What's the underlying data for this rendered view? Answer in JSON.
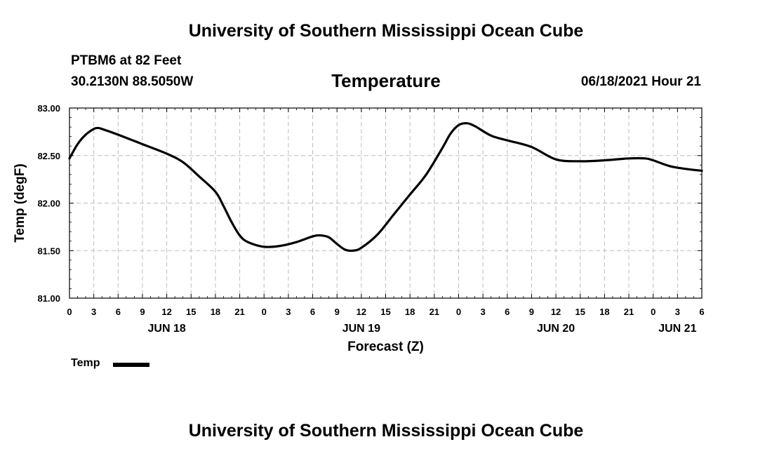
{
  "header": {
    "top_title": "University of Southern Mississippi Ocean Cube",
    "bottom_title": "University of Southern Mississippi Ocean Cube",
    "station_name": "PTBM6 at 82 Feet",
    "station_coords": "30.2130N  88.5050W",
    "valid_time": "06/18/2021 Hour 21"
  },
  "chart_data": {
    "type": "line",
    "title": "Temperature",
    "xlabel": "Forecast (Z)",
    "ylabel": "Temp (degF)",
    "ylim": [
      81.0,
      83.0
    ],
    "xlim_hours": [
      0,
      78
    ],
    "y_ticks": [
      "81.00",
      "81.50",
      "82.00",
      "82.50",
      "83.00"
    ],
    "y_tick_values": [
      81.0,
      81.5,
      82.0,
      82.5,
      83.0
    ],
    "x_tick_hours": [
      0,
      3,
      6,
      9,
      12,
      15,
      18,
      21,
      24,
      27,
      30,
      33,
      36,
      39,
      42,
      45,
      48,
      51,
      54,
      57,
      60,
      63,
      66,
      69,
      72,
      75,
      78
    ],
    "x_tick_labels": [
      "0",
      "3",
      "6",
      "9",
      "12",
      "15",
      "18",
      "21",
      "0",
      "3",
      "6",
      "9",
      "12",
      "15",
      "18",
      "21",
      "0",
      "3",
      "6",
      "9",
      "12",
      "15",
      "18",
      "21",
      "0",
      "3",
      "6"
    ],
    "day_labels": [
      {
        "label": "JUN 18",
        "hour": 12
      },
      {
        "label": "JUN 19",
        "hour": 36
      },
      {
        "label": "JUN 20",
        "hour": 60
      },
      {
        "label": "JUN 21",
        "hour": 75
      }
    ],
    "grid": true,
    "legend": {
      "position": "bottom-left",
      "entries": [
        "Temp"
      ]
    },
    "series": [
      {
        "name": "Temp",
        "color": "#000000",
        "x": [
          0,
          1,
          2,
          3,
          3.5,
          4,
          6,
          9,
          12,
          14,
          16,
          18,
          19,
          20,
          21,
          22,
          24,
          26,
          28,
          30,
          31,
          32,
          33,
          34,
          35,
          36,
          38,
          40,
          42,
          44,
          46,
          47,
          48,
          49,
          50,
          52,
          54,
          57,
          60,
          63,
          66,
          69,
          71,
          72,
          74,
          76,
          78
        ],
        "y": [
          82.47,
          82.62,
          82.72,
          82.78,
          82.79,
          82.78,
          82.72,
          82.62,
          82.52,
          82.43,
          82.28,
          82.12,
          81.97,
          81.8,
          81.66,
          81.59,
          81.54,
          81.55,
          81.59,
          81.65,
          81.66,
          81.64,
          81.57,
          81.51,
          81.5,
          81.53,
          81.67,
          81.88,
          82.09,
          82.3,
          82.58,
          82.73,
          82.82,
          82.84,
          82.81,
          82.71,
          82.66,
          82.59,
          82.46,
          82.44,
          82.45,
          82.47,
          82.47,
          82.45,
          82.39,
          82.36,
          82.34
        ]
      }
    ]
  }
}
